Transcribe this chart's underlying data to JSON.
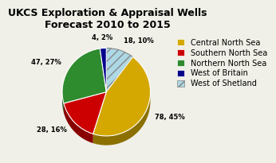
{
  "title": "UKCS Exploration & Appraisal Wells\nForecast 2010 to 2015",
  "labels": [
    "Central North Sea",
    "Southern North Sea",
    "Northern North Sea",
    "West of Britain",
    "West of Shetland"
  ],
  "values": [
    78,
    28,
    47,
    4,
    18
  ],
  "colors": [
    "#D4A800",
    "#CC0000",
    "#2E8B2E",
    "#00008B",
    "#ADD8E6"
  ],
  "dark_colors": [
    "#8B7000",
    "#880000",
    "#1A5C1A",
    "#000060",
    "#7BAAB8"
  ],
  "hatch": [
    false,
    false,
    false,
    false,
    true
  ],
  "autopct_labels": [
    "78, 45%",
    "28, 16%",
    "47, 27%",
    "4, 2%",
    "18, 10%"
  ],
  "background_color": "#f0f0e8",
  "title_fontsize": 9,
  "legend_fontsize": 7
}
